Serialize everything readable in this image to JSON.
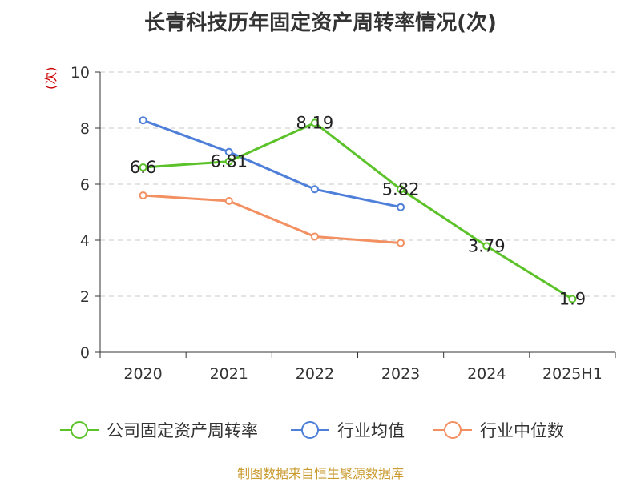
{
  "chart_data": {
    "type": "line",
    "title": "长青科技历年固定资产周转率情况(次)",
    "ylabel": "(次)",
    "categories": [
      "2020",
      "2021",
      "2022",
      "2023",
      "2024",
      "2025H1"
    ],
    "ylim": [
      0,
      10
    ],
    "yticks": [
      0,
      2,
      4,
      6,
      8,
      10
    ],
    "grid": true,
    "legend_position": "bottom",
    "series": [
      {
        "name": "公司固定资产周转率",
        "color": "#5bc22a",
        "values": [
          6.6,
          6.81,
          8.19,
          5.82,
          3.79,
          1.9
        ],
        "labels": [
          "6.6",
          "6.81",
          "8.19",
          "5.82",
          "3.79",
          "1.9"
        ]
      },
      {
        "name": "行业均值",
        "color": "#4e7fd9",
        "values": [
          8.28,
          7.15,
          5.82,
          5.18,
          null,
          null
        ],
        "labels": null
      },
      {
        "name": "行业中位数",
        "color": "#f39062",
        "values": [
          5.6,
          5.4,
          4.13,
          3.9,
          null,
          null
        ],
        "labels": null
      }
    ]
  },
  "source": "制图数据来自恒生聚源数据库"
}
